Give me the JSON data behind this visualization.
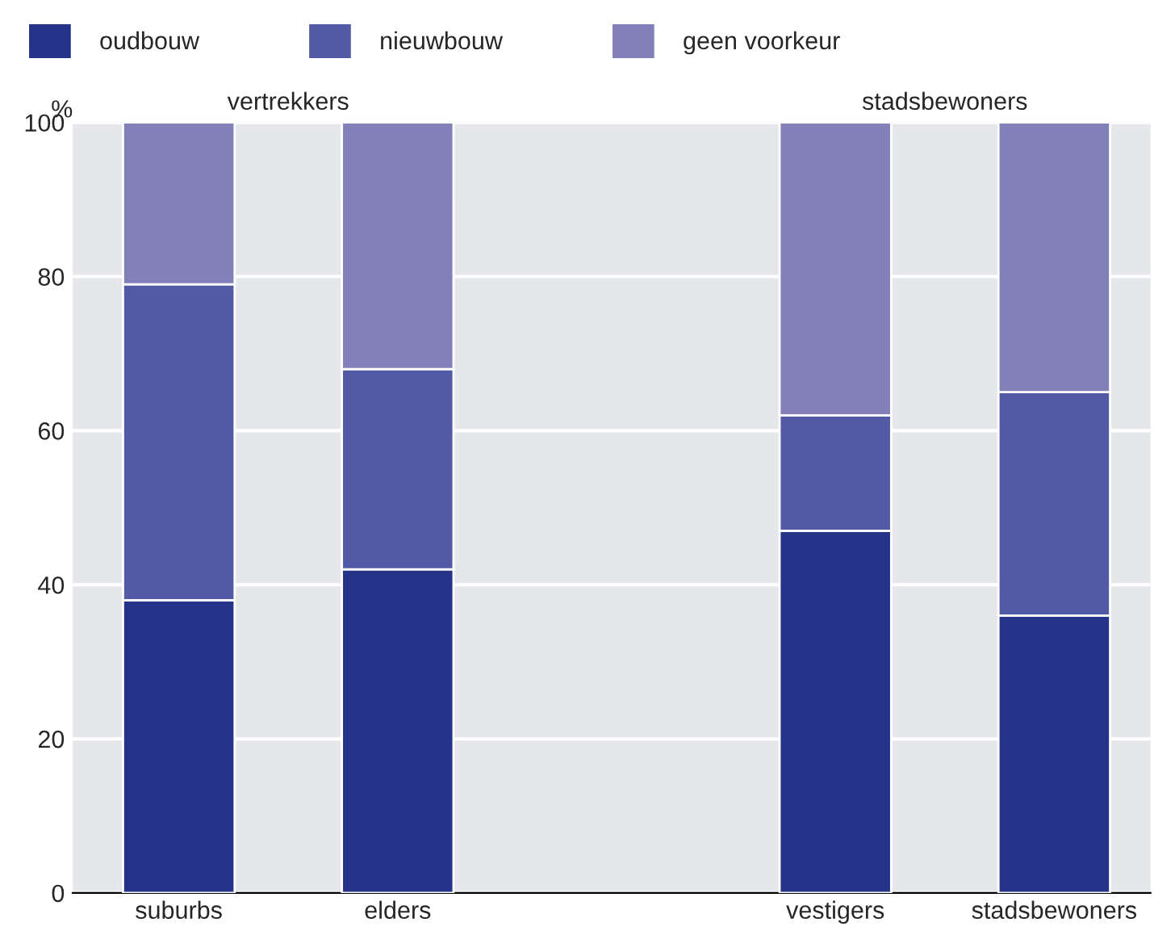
{
  "chart_data": {
    "type": "bar",
    "stacked": true,
    "categories": [
      "suburbs",
      "elders",
      null,
      "vestigers",
      "stadsbewoners"
    ],
    "series": [
      {
        "name": "oudbouw",
        "color": "#253489",
        "values": [
          38,
          42,
          null,
          47,
          36
        ]
      },
      {
        "name": "nieuwbouw",
        "color": "#525aa5",
        "values": [
          41,
          26,
          null,
          15,
          29
        ]
      },
      {
        "name": "geen voorkeur",
        "color": "#8180b9",
        "values": [
          21,
          32,
          null,
          38,
          35
        ]
      }
    ],
    "ylabel": "%",
    "ylim": [
      0,
      100
    ],
    "yticks": [
      0,
      20,
      40,
      60,
      80,
      100
    ],
    "grid": "y",
    "legend": "top",
    "annotations": [
      "vertrekkers",
      "stadsbewoners"
    ]
  }
}
